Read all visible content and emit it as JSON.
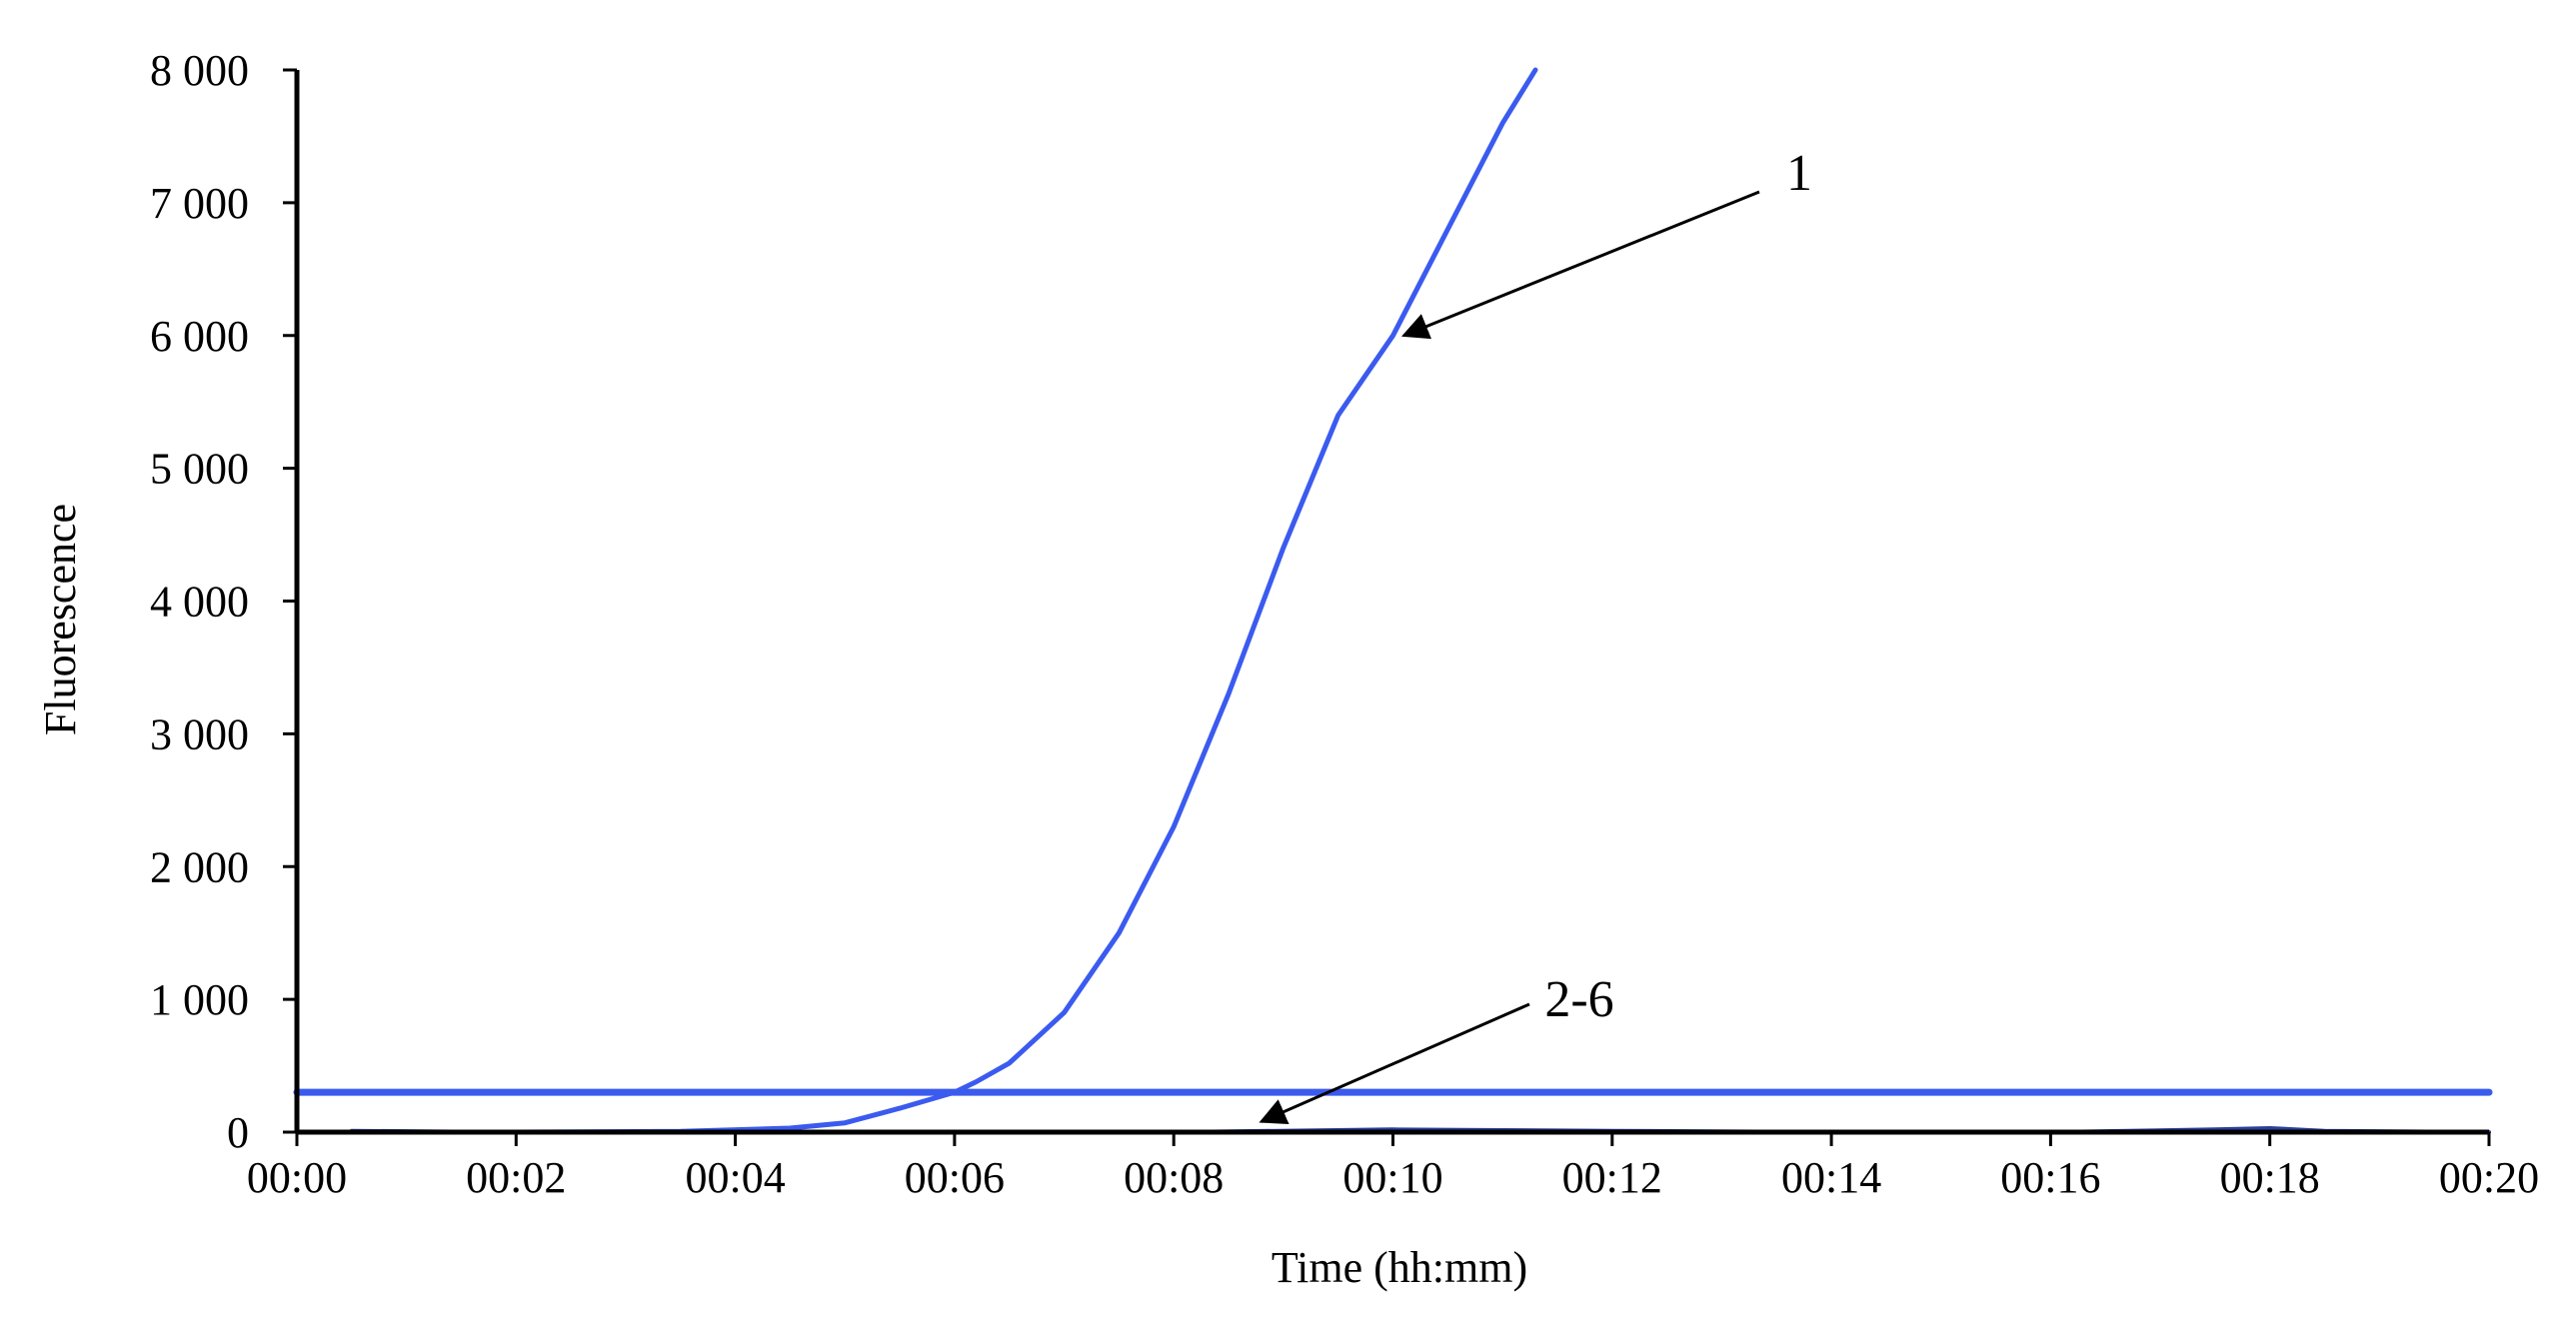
{
  "chart_data": {
    "type": "line",
    "title": "",
    "xlabel": "Time (hh:mm)",
    "ylabel": "Fluorescence",
    "xlim_minutes": [
      0,
      20
    ],
    "ylim": [
      0,
      8000
    ],
    "x_ticks": [
      "00:00",
      "00:02",
      "00:04",
      "00:06",
      "00:08",
      "00:10",
      "00:12",
      "00:14",
      "00:16",
      "00:18",
      "00:20"
    ],
    "y_ticks": [
      {
        "value": 0,
        "label": "0"
      },
      {
        "value": 1000,
        "label": "1 000"
      },
      {
        "value": 2000,
        "label": "2 000"
      },
      {
        "value": 3000,
        "label": "3 000"
      },
      {
        "value": 4000,
        "label": "4 000"
      },
      {
        "value": 5000,
        "label": "5 000"
      },
      {
        "value": 6000,
        "label": "6 000"
      },
      {
        "value": 7000,
        "label": "7 000"
      },
      {
        "value": 8000,
        "label": "8 000"
      }
    ],
    "grid": false,
    "legend": "none",
    "colors": {
      "curve": "#3b5bef",
      "threshold": "#3b5bef",
      "negatives": "#2a3f9a",
      "axis": "#000000"
    },
    "series": [
      {
        "id": "curve-1",
        "x_minutes": [
          0.5,
          2,
          3.5,
          4.5,
          5,
          5.5,
          6,
          6.2,
          6.5,
          7,
          7.5,
          8,
          8.5,
          9,
          9.5,
          10,
          10.5,
          11,
          11.3
        ],
        "y": [
          0,
          0,
          5,
          30,
          70,
          180,
          300,
          380,
          520,
          900,
          1500,
          2300,
          3300,
          4400,
          5400,
          6000,
          6800,
          7600,
          8000
        ]
      },
      {
        "id": "threshold",
        "x_minutes": [
          0,
          20
        ],
        "y": [
          300,
          300
        ]
      },
      {
        "id": "curves-2-6",
        "x_minutes": [
          0.5,
          2,
          4,
          6,
          8,
          10,
          12,
          14,
          16,
          17.5,
          18,
          18.5,
          20
        ],
        "y": [
          10,
          0,
          0,
          0,
          0,
          20,
          10,
          0,
          0,
          20,
          30,
          10,
          0
        ]
      }
    ],
    "annotations": [
      {
        "text": "1",
        "point_to": {
          "x_minutes": 10.1,
          "y": 6000
        }
      },
      {
        "text": "2-6",
        "point_to": {
          "x_minutes": 8.8,
          "y": 80
        }
      }
    ]
  }
}
